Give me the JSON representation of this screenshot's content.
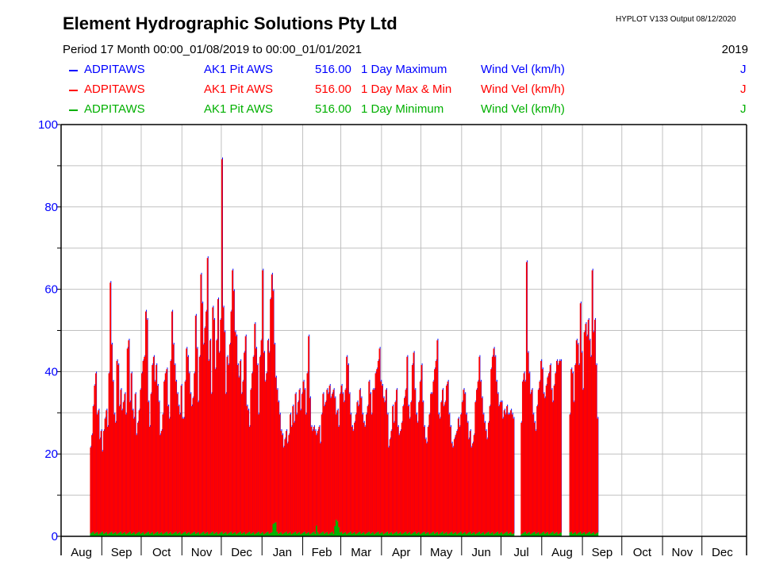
{
  "header": {
    "title": "Element Hydrographic Solutions Pty Ltd",
    "version": "HYPLOT V133  Output 08/12/2020",
    "period": "Period   17 Month  00:00_01/08/2019 to 00:00_01/01/2021",
    "year": "2019"
  },
  "legend": [
    {
      "site": "ADPITAWS",
      "name": "AK1 Pit AWS",
      "variable": "516.00",
      "type": "1 Day Maximum",
      "units": "Wind Vel (km/h)",
      "flag": "J",
      "color": "#0000ff"
    },
    {
      "site": "ADPITAWS",
      "name": "AK1 Pit AWS",
      "variable": "516.00",
      "type": "1 Day Max & Min",
      "units": "Wind Vel (km/h)",
      "flag": "J",
      "color": "#ff0000"
    },
    {
      "site": "ADPITAWS",
      "name": "AK1 Pit AWS",
      "variable": "516.00",
      "type": "1 Day Minimum",
      "units": "Wind Vel (km/h)",
      "flag": "J",
      "color": "#00b000"
    }
  ],
  "chart_data": {
    "type": "bar",
    "title": "Element Hydrographic Solutions Pty Ltd",
    "xlabel": "",
    "ylabel": "Wind Vel (km/h)",
    "ylim": [
      0,
      100
    ],
    "yticks": [
      "0",
      "20",
      "40",
      "60",
      "80",
      "100"
    ],
    "ytick_values": [
      0,
      20,
      40,
      60,
      80,
      100
    ],
    "grid": true,
    "x_start": "2019-08-01",
    "x_end": "2020-12-31",
    "month_labels": [
      "Aug",
      "Sep",
      "Oct",
      "Nov",
      "Dec",
      "Jan",
      "Feb",
      "Mar",
      "Apr",
      "May",
      "Jun",
      "Jul",
      "Aug",
      "Sep",
      "Oct",
      "Nov",
      "Dec"
    ],
    "month_days": [
      31,
      30,
      31,
      30,
      31,
      31,
      29,
      31,
      30,
      31,
      30,
      31,
      31,
      30,
      31,
      30,
      31
    ],
    "data_start_day": 22,
    "series": [
      {
        "name": "1 Day Maximum",
        "color": "#0000ff",
        "values": [
          22,
          25,
          32,
          37,
          40,
          30,
          31,
          24,
          26,
          21,
          26,
          29,
          31,
          27,
          40,
          62,
          47,
          38,
          30,
          28,
          43,
          42,
          32,
          36,
          31,
          33,
          35,
          30,
          46,
          48,
          33,
          40,
          31,
          29,
          35,
          25,
          28,
          31,
          36,
          40,
          43,
          44,
          55,
          53,
          33,
          27,
          35,
          42,
          44,
          38,
          42,
          37,
          33,
          25,
          26,
          30,
          38,
          40,
          41,
          32,
          29,
          43,
          55,
          47,
          42,
          38,
          35,
          32,
          30,
          37,
          29,
          29,
          38,
          46,
          44,
          40,
          35,
          32,
          34,
          40,
          54,
          46,
          33,
          44,
          64,
          57,
          47,
          51,
          55,
          68,
          43,
          48,
          35,
          56,
          53,
          41,
          48,
          58,
          45,
          53,
          92,
          56,
          50,
          35,
          44,
          42,
          47,
          55,
          65,
          60,
          50,
          49,
          42,
          39,
          43,
          35,
          38,
          45,
          49,
          32,
          31,
          27,
          36,
          40,
          44,
          52,
          46,
          42,
          30,
          44,
          48,
          65,
          45,
          38,
          40,
          48,
          45,
          58,
          64,
          60,
          47,
          39,
          36,
          33,
          30,
          26,
          25,
          22,
          24,
          26,
          23,
          25,
          30,
          27,
          32,
          28,
          35,
          30,
          33,
          36,
          31,
          35,
          38,
          36,
          30,
          40,
          49,
          34,
          27,
          26,
          27,
          26,
          25,
          26,
          27,
          23,
          30,
          35,
          32,
          33,
          36,
          35,
          37,
          34,
          35,
          36,
          34,
          30,
          31,
          27,
          35,
          37,
          35,
          33,
          36,
          44,
          42,
          35,
          30,
          27,
          26,
          28,
          30,
          33,
          32,
          36,
          34,
          30,
          28,
          27,
          30,
          32,
          38,
          35,
          30,
          36,
          36,
          40,
          41,
          43,
          46,
          38,
          37,
          34,
          33,
          36,
          30,
          22,
          24,
          26,
          32,
          28,
          33,
          36,
          27,
          25,
          26,
          28,
          32,
          34,
          36,
          44,
          32,
          29,
          33,
          42,
          45,
          36,
          30,
          28,
          33,
          38,
          42,
          33,
          27,
          24,
          23,
          27,
          30,
          35,
          35,
          38,
          41,
          43,
          48,
          30,
          29,
          33,
          36,
          32,
          33,
          37,
          38,
          30,
          27,
          23,
          22,
          24,
          25,
          26,
          29,
          27,
          30,
          33,
          36,
          35,
          30,
          28,
          24,
          26,
          22,
          23,
          25,
          33,
          36,
          38,
          44,
          38,
          34,
          30,
          28,
          26,
          24,
          28,
          32,
          41,
          44,
          46,
          44,
          38,
          35,
          32,
          33,
          33,
          29,
          31,
          30,
          32,
          30,
          30,
          31,
          30,
          29,
          null,
          null,
          null,
          null,
          null,
          28,
          38,
          40,
          38,
          67,
          45,
          40,
          35,
          36,
          30,
          28,
          26,
          32,
          36,
          38,
          43,
          41,
          35,
          34,
          37,
          39,
          40,
          42,
          36,
          33,
          37,
          40,
          43,
          42,
          43,
          43,
          null,
          null,
          null,
          null,
          null,
          null,
          30,
          41,
          40,
          33,
          42,
          48,
          47,
          42,
          57,
          45,
          36,
          50,
          52,
          49,
          53,
          48,
          44,
          65,
          50,
          53,
          42,
          29
        ],
        "min_values": null
      },
      {
        "name": "1 Day Minimum",
        "color": "#00b000",
        "values_note": "mostly 0-1 km/h; peaks ~3 (early Jan 2020), ~2.5 (early Feb 2020), ~4 (late Feb 2020)",
        "baseline": 0.5,
        "peaks": [
          {
            "day": 161,
            "value": 3.0
          },
          {
            "day": 162,
            "value": 3.2
          },
          {
            "day": 163,
            "value": 3.4
          },
          {
            "day": 194,
            "value": 2.6
          },
          {
            "day": 208,
            "value": 2.5
          },
          {
            "day": 209,
            "value": 4.0
          },
          {
            "day": 210,
            "value": 3.6
          },
          {
            "day": 211,
            "value": 2.2
          }
        ]
      }
    ]
  }
}
